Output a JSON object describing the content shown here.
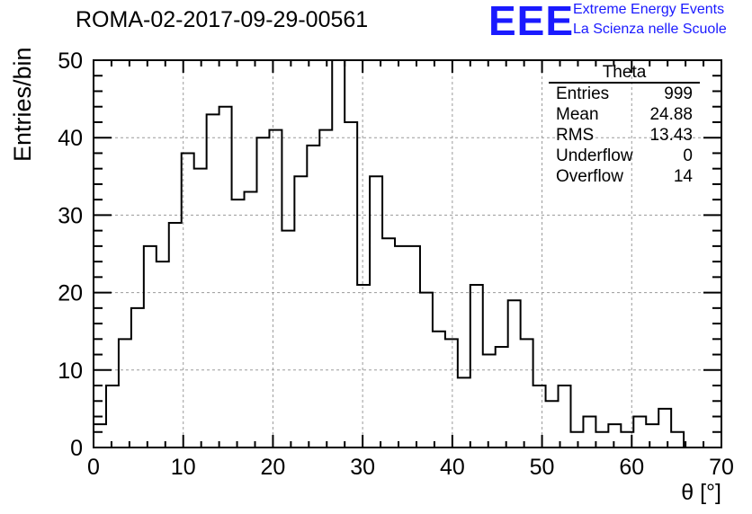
{
  "title": "ROMA-02-2017-09-29-00561",
  "logo": {
    "text": "EEE",
    "line1": "Extreme Energy Events",
    "line2": "La Scienza nelle Scuole",
    "color": "#1a1aff"
  },
  "stats": {
    "name": "Theta",
    "rows": [
      {
        "label": "Entries",
        "value": "999"
      },
      {
        "label": "Mean",
        "value": "24.88"
      },
      {
        "label": "RMS",
        "value": "13.43"
      },
      {
        "label": "Underflow",
        "value": "0"
      },
      {
        "label": "Overflow",
        "value": "14"
      }
    ]
  },
  "chart_data": {
    "type": "histogram",
    "title": "ROMA-02-2017-09-29-00561",
    "xlabel": "θ [°]",
    "ylabel": "Entries/bin",
    "xlim": [
      0,
      70
    ],
    "ylim": [
      0,
      50
    ],
    "bin_width": 1.4,
    "bin_edges_start": 0,
    "xticks": [
      0,
      10,
      20,
      30,
      40,
      50,
      60,
      70
    ],
    "yticks": [
      0,
      10,
      20,
      30,
      40,
      50
    ],
    "grid": true,
    "legend_position": "top-right",
    "values": [
      3,
      8,
      14,
      18,
      26,
      24,
      29,
      38,
      36,
      43,
      44,
      32,
      33,
      40,
      41,
      28,
      35,
      39,
      41,
      50,
      42,
      21,
      35,
      27,
      26,
      26,
      20,
      15,
      14,
      9,
      21,
      12,
      13,
      19,
      14,
      8,
      6,
      8,
      2,
      4,
      2,
      3,
      2,
      4,
      3,
      5,
      2,
      0,
      0,
      0
    ]
  }
}
